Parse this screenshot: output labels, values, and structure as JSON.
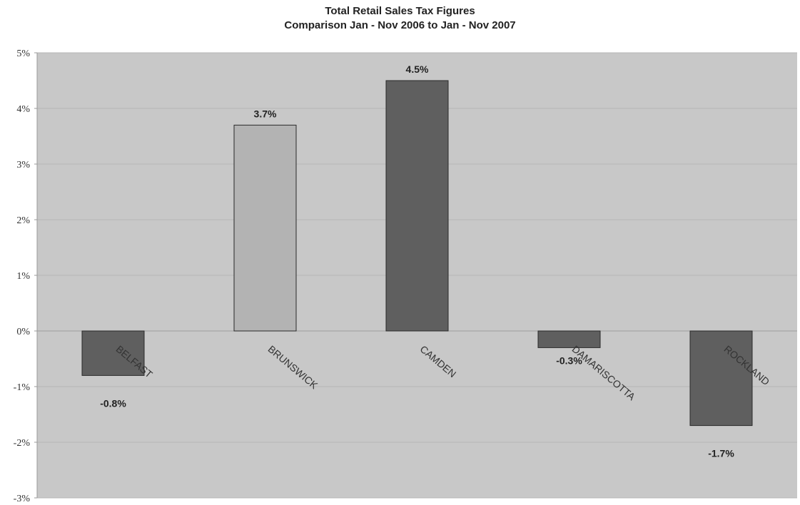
{
  "chart_data": {
    "type": "bar",
    "title": "Total Retail Sales Tax Figures",
    "subtitle": "Comparison Jan - Nov 2006 to Jan - Nov 2007",
    "categories": [
      "BELFAST",
      "BRUNSWICK",
      "CAMDEN",
      "DAMARISCOTTA",
      "ROCKLAND"
    ],
    "values": [
      -0.8,
      3.7,
      4.5,
      -0.3,
      -1.7
    ],
    "data_labels": [
      "-0.8%",
      "3.7%",
      "4.5%",
      "-0.3%",
      "-1.7%"
    ],
    "bar_colors": [
      "#5f5f5f",
      "#b3b3b3",
      "#5f5f5f",
      "#5f5f5f",
      "#5f5f5f"
    ],
    "ylim": [
      -3,
      5
    ],
    "yticks": [
      5,
      4,
      3,
      2,
      1,
      0,
      -1,
      -2,
      -3
    ],
    "ytick_labels": [
      "5%",
      "4%",
      "3%",
      "2%",
      "1%",
      "0%",
      "-1%",
      "-2%",
      "-3%"
    ],
    "xlabel": "",
    "ylabel": "",
    "grid": true,
    "legend": false,
    "plot_background": "#c8c8c8"
  }
}
